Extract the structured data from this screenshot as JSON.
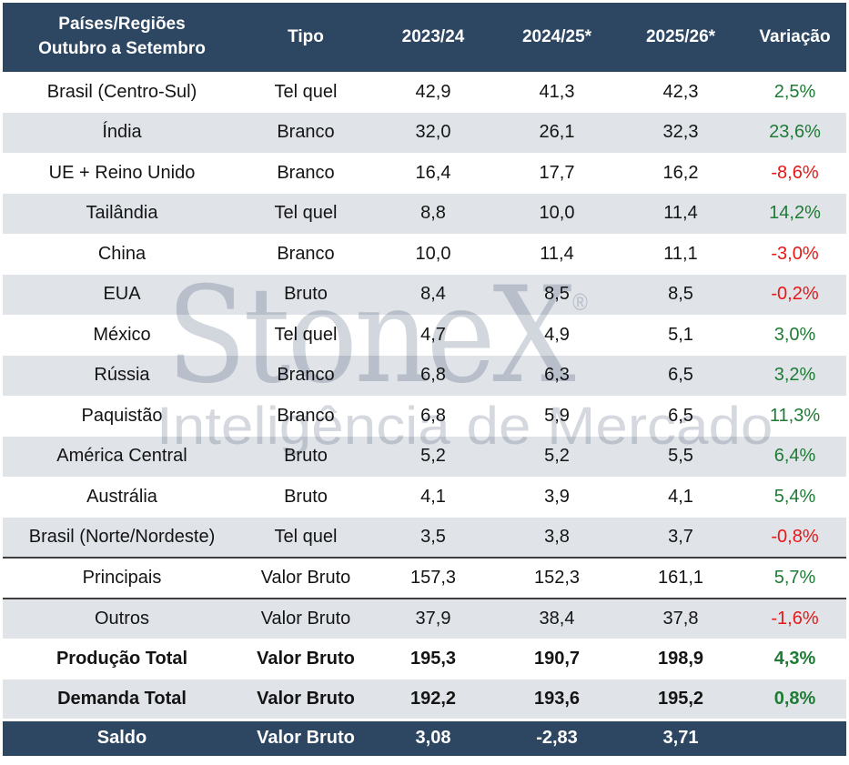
{
  "header": {
    "region_col_line1": "Países/Regiões",
    "region_col_line2": "Outubro a Setembro",
    "columns": [
      "Tipo",
      "2023/24",
      "2024/25*",
      "2025/26*",
      "Variação"
    ]
  },
  "table": {
    "rows": [
      {
        "name": "Brasil (Centro-Sul)",
        "tipo": "Tel quel",
        "v2324": "42,9",
        "v2425": "41,3",
        "v2526": "42,3",
        "variacao": "2,5%",
        "trend": "up",
        "style": "normal"
      },
      {
        "name": "Índia",
        "tipo": "Branco",
        "v2324": "32,0",
        "v2425": "26,1",
        "v2526": "32,3",
        "variacao": "23,6%",
        "trend": "up",
        "style": "normal"
      },
      {
        "name": "UE + Reino Unido",
        "tipo": "Branco",
        "v2324": "16,4",
        "v2425": "17,7",
        "v2526": "16,2",
        "variacao": "-8,6%",
        "trend": "down",
        "style": "normal"
      },
      {
        "name": "Tailândia",
        "tipo": "Tel quel",
        "v2324": "8,8",
        "v2425": "10,0",
        "v2526": "11,4",
        "variacao": "14,2%",
        "trend": "up",
        "style": "normal"
      },
      {
        "name": "China",
        "tipo": "Branco",
        "v2324": "10,0",
        "v2425": "11,4",
        "v2526": "11,1",
        "variacao": "-3,0%",
        "trend": "down",
        "style": "normal"
      },
      {
        "name": "EUA",
        "tipo": "Bruto",
        "v2324": "8,4",
        "v2425": "8,5",
        "v2526": "8,5",
        "variacao": "-0,2%",
        "trend": "down",
        "style": "normal"
      },
      {
        "name": "México",
        "tipo": "Tel quel",
        "v2324": "4,7",
        "v2425": "4,9",
        "v2526": "5,1",
        "variacao": "3,0%",
        "trend": "up",
        "style": "normal"
      },
      {
        "name": "Rússia",
        "tipo": "Branco",
        "v2324": "6,8",
        "v2425": "6,3",
        "v2526": "6,5",
        "variacao": "3,2%",
        "trend": "up",
        "style": "normal"
      },
      {
        "name": "Paquistão",
        "tipo": "Branco",
        "v2324": "6,8",
        "v2425": "5,9",
        "v2526": "6,5",
        "variacao": "11,3%",
        "trend": "up",
        "style": "normal"
      },
      {
        "name": "América Central",
        "tipo": "Bruto",
        "v2324": "5,2",
        "v2425": "5,2",
        "v2526": "5,5",
        "variacao": "6,4%",
        "trend": "up",
        "style": "normal"
      },
      {
        "name": "Austrália",
        "tipo": "Bruto",
        "v2324": "4,1",
        "v2425": "3,9",
        "v2526": "4,1",
        "variacao": "5,4%",
        "trend": "up",
        "style": "normal"
      },
      {
        "name": "Brasil (Norte/Nordeste)",
        "tipo": "Tel quel",
        "v2324": "3,5",
        "v2425": "3,8",
        "v2526": "3,7",
        "variacao": "-0,8%",
        "trend": "down",
        "style": "normal"
      },
      {
        "name": "Principais",
        "tipo": "Valor Bruto",
        "v2324": "157,3",
        "v2425": "152,3",
        "v2526": "161,1",
        "variacao": "5,7%",
        "trend": "up",
        "style": "separator"
      },
      {
        "name": "Outros",
        "tipo": "Valor Bruto",
        "v2324": "37,9",
        "v2425": "38,4",
        "v2526": "37,8",
        "variacao": "-1,6%",
        "trend": "down",
        "style": "separator"
      },
      {
        "name": "Produção Total",
        "tipo": "Valor Bruto",
        "v2324": "195,3",
        "v2425": "190,7",
        "v2526": "198,9",
        "variacao": "4,3%",
        "trend": "up",
        "style": "total"
      },
      {
        "name": "Demanda Total",
        "tipo": "Valor Bruto",
        "v2324": "192,2",
        "v2425": "193,6",
        "v2526": "195,2",
        "variacao": "0,8%",
        "trend": "up",
        "style": "total"
      },
      {
        "name": "Saldo",
        "tipo": "Valor Bruto",
        "v2324": "3,08",
        "v2425": "-2,83",
        "v2526": "3,71",
        "variacao": "",
        "trend": null,
        "style": "saldo"
      }
    ]
  },
  "watermark": {
    "brand": "StoneX",
    "registered": "®",
    "tagline": "Inteligência de Mercado"
  },
  "colors": {
    "header_navy": "#2d4763",
    "row_shade": "#e0e4e9",
    "positive_green": "#1e7b34",
    "negative_red": "#e81616",
    "separator_line": "#3f3f3f",
    "watermark_gray": "#d2d6dd"
  },
  "chart_data": {
    "type": "table",
    "title": "Países/Regiões Outubro a Setembro",
    "columns": [
      "Países/Regiões Outubro a Setembro",
      "Tipo",
      "2023/24",
      "2024/25*",
      "2025/26*",
      "Variação"
    ],
    "rows": [
      [
        "Brasil (Centro-Sul)",
        "Tel quel",
        42.9,
        41.3,
        42.3,
        "2,5%"
      ],
      [
        "Índia",
        "Branco",
        32.0,
        26.1,
        32.3,
        "23,6%"
      ],
      [
        "UE + Reino Unido",
        "Branco",
        16.4,
        17.7,
        16.2,
        "-8,6%"
      ],
      [
        "Tailândia",
        "Tel quel",
        8.8,
        10.0,
        11.4,
        "14,2%"
      ],
      [
        "China",
        "Branco",
        10.0,
        11.4,
        11.1,
        "-3,0%"
      ],
      [
        "EUA",
        "Bruto",
        8.4,
        8.5,
        8.5,
        "-0,2%"
      ],
      [
        "México",
        "Tel quel",
        4.7,
        4.9,
        5.1,
        "3,0%"
      ],
      [
        "Rússia",
        "Branco",
        6.8,
        6.3,
        6.5,
        "3,2%"
      ],
      [
        "Paquistão",
        "Branco",
        6.8,
        5.9,
        6.5,
        "11,3%"
      ],
      [
        "América Central",
        "Bruto",
        5.2,
        5.2,
        5.5,
        "6,4%"
      ],
      [
        "Austrália",
        "Bruto",
        4.1,
        3.9,
        4.1,
        "5,4%"
      ],
      [
        "Brasil (Norte/Nordeste)",
        "Tel quel",
        3.5,
        3.8,
        3.7,
        "-0,8%"
      ],
      [
        "Principais",
        "Valor Bruto",
        157.3,
        152.3,
        161.1,
        "5,7%"
      ],
      [
        "Outros",
        "Valor Bruto",
        37.9,
        38.4,
        37.8,
        "-1,6%"
      ],
      [
        "Produção Total",
        "Valor Bruto",
        195.3,
        190.7,
        198.9,
        "4,3%"
      ],
      [
        "Demanda Total",
        "Valor Bruto",
        192.2,
        193.6,
        195.2,
        "0,8%"
      ],
      [
        "Saldo",
        "Valor Bruto",
        3.08,
        -2.83,
        3.71,
        ""
      ]
    ]
  }
}
